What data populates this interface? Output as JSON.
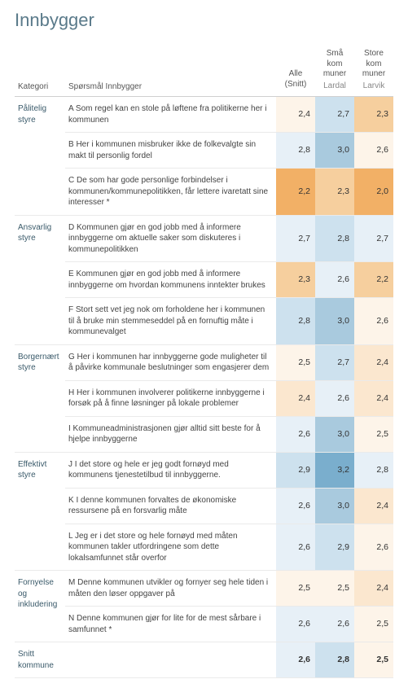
{
  "title": "Innbygger",
  "colors": {
    "orange_strong": "#f2b066",
    "orange_mid": "#f6cf9e",
    "orange_light": "#fbe7cf",
    "orange_faint": "#fdf4e9",
    "blue_strong": "#7aaecd",
    "blue_mid": "#a9cade",
    "blue_light": "#cde1ee",
    "blue_faint": "#e7f0f7"
  },
  "headers": {
    "kategori": "Kategori",
    "sporsmal": "Spørsmål Innbygger",
    "alle": {
      "top": "Alle (Snitt)",
      "sub": ""
    },
    "sma": {
      "top": "Små kom muner",
      "sub": "Lardal"
    },
    "store": {
      "top": "Store kom muner",
      "sub": "Larvik"
    }
  },
  "categories": [
    {
      "name": "Pålitelig styre",
      "rows": [
        {
          "q": "A Som regel kan en stole på løftene fra politikerne her i kommunen",
          "v": [
            {
              "val": "2,4",
              "c": "orange_faint"
            },
            {
              "val": "2,7",
              "c": "blue_light"
            },
            {
              "val": "2,3",
              "c": "orange_mid"
            }
          ]
        },
        {
          "q": "B Her i kommunen misbruker ikke de folkevalgte sin makt til personlig fordel",
          "v": [
            {
              "val": "2,8",
              "c": "blue_faint"
            },
            {
              "val": "3,0",
              "c": "blue_mid"
            },
            {
              "val": "2,6",
              "c": "orange_faint"
            }
          ]
        },
        {
          "q": "C De som har gode personlige forbindelser i kommunen/kommunepolitikken, får lettere ivaretatt sine interesser *",
          "v": [
            {
              "val": "2,2",
              "c": "orange_strong"
            },
            {
              "val": "2,3",
              "c": "orange_mid"
            },
            {
              "val": "2,0",
              "c": "orange_strong"
            }
          ]
        }
      ]
    },
    {
      "name": "Ansvarlig styre",
      "rows": [
        {
          "q": "D Kommunen gjør en god jobb med å informere innbyggerne om aktuelle saker som diskuteres i kommunepolitikken",
          "v": [
            {
              "val": "2,7",
              "c": "blue_faint"
            },
            {
              "val": "2,8",
              "c": "blue_light"
            },
            {
              "val": "2,7",
              "c": "blue_faint"
            }
          ]
        },
        {
          "q": "E Kommunen gjør en god jobb med å informere innbyggerne om hvordan kommunens inntekter brukes",
          "v": [
            {
              "val": "2,3",
              "c": "orange_mid"
            },
            {
              "val": "2,6",
              "c": "blue_faint"
            },
            {
              "val": "2,2",
              "c": "orange_mid"
            }
          ]
        },
        {
          "q": "F Stort sett vet jeg nok om forholdene her i kommunen til å bruke min stemmeseddel på en fornuftig måte i kommunevalget",
          "v": [
            {
              "val": "2,8",
              "c": "blue_light"
            },
            {
              "val": "3,0",
              "c": "blue_mid"
            },
            {
              "val": "2,6",
              "c": "orange_faint"
            }
          ]
        }
      ]
    },
    {
      "name": "Borgernært styre",
      "rows": [
        {
          "q": "G Her i kommunen har innbyggerne gode muligheter til å påvirke kommunale beslutninger som engasjerer dem",
          "v": [
            {
              "val": "2,5",
              "c": "orange_faint"
            },
            {
              "val": "2,7",
              "c": "blue_light"
            },
            {
              "val": "2,4",
              "c": "orange_light"
            }
          ]
        },
        {
          "q": "H Her i kommunen involverer politikerne innbyggerne i forsøk på å finne løsninger på lokale problemer",
          "v": [
            {
              "val": "2,4",
              "c": "orange_light"
            },
            {
              "val": "2,6",
              "c": "blue_faint"
            },
            {
              "val": "2,4",
              "c": "orange_light"
            }
          ]
        },
        {
          "q": "I Kommuneadministrasjonen gjør alltid sitt beste for å hjelpe innbyggerne",
          "v": [
            {
              "val": "2,6",
              "c": "blue_faint"
            },
            {
              "val": "3,0",
              "c": "blue_mid"
            },
            {
              "val": "2,5",
              "c": "orange_faint"
            }
          ]
        }
      ]
    },
    {
      "name": "Effektivt styre",
      "rows": [
        {
          "q": "J I det store og hele er jeg godt fornøyd med kommunens tjenestetilbud til innbyggerne.",
          "v": [
            {
              "val": "2,9",
              "c": "blue_light"
            },
            {
              "val": "3,2",
              "c": "blue_strong"
            },
            {
              "val": "2,8",
              "c": "blue_faint"
            }
          ]
        },
        {
          "q": "K I denne kommunen forvaltes de økonomiske ressursene på en forsvarlig måte",
          "v": [
            {
              "val": "2,6",
              "c": "blue_faint"
            },
            {
              "val": "3,0",
              "c": "blue_mid"
            },
            {
              "val": "2,4",
              "c": "orange_light"
            }
          ]
        },
        {
          "q": "L Jeg er i det store og hele fornøyd med måten kommunen takler utfordringene som dette lokalsamfunnet står overfor",
          "v": [
            {
              "val": "2,6",
              "c": "blue_faint"
            },
            {
              "val": "2,9",
              "c": "blue_light"
            },
            {
              "val": "2,6",
              "c": "orange_faint"
            }
          ]
        }
      ]
    },
    {
      "name": "Fornyelse og inkludering",
      "rows": [
        {
          "q": "M Denne kommunen utvikler og fornyer seg hele tiden i måten den løser oppgaver på",
          "v": [
            {
              "val": "2,5",
              "c": "orange_faint"
            },
            {
              "val": "2,5",
              "c": "orange_faint"
            },
            {
              "val": "2,4",
              "c": "orange_light"
            }
          ]
        },
        {
          "q": "N Denne kommunen gjør for lite for de mest sårbare i samfunnet *",
          "v": [
            {
              "val": "2,6",
              "c": "blue_faint"
            },
            {
              "val": "2,6",
              "c": "blue_faint"
            },
            {
              "val": "2,5",
              "c": "orange_faint"
            }
          ]
        }
      ]
    }
  ],
  "summary": {
    "label": "Snitt kommune",
    "v": [
      {
        "val": "2,6",
        "c": "blue_faint"
      },
      {
        "val": "2,8",
        "c": "blue_light"
      },
      {
        "val": "2,5",
        "c": "orange_faint"
      }
    ]
  }
}
